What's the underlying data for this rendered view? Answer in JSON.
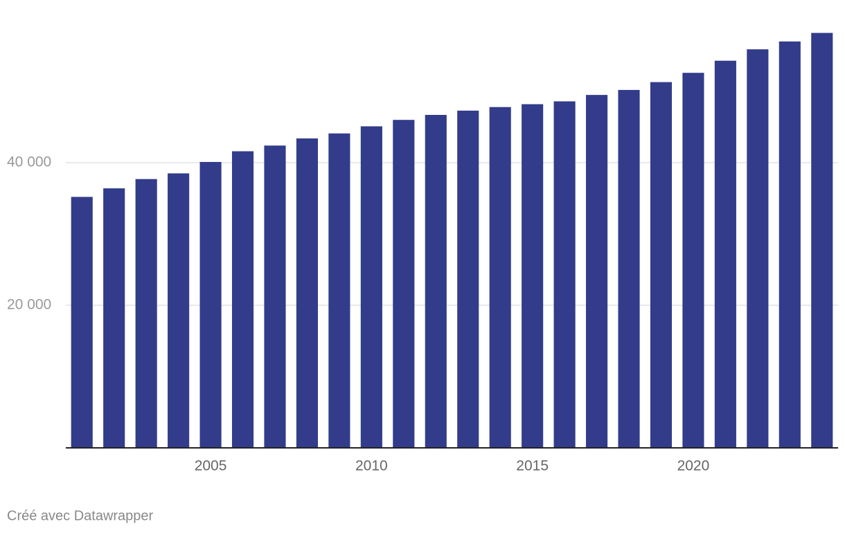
{
  "chart_data": {
    "type": "bar",
    "x": [
      2001,
      2002,
      2003,
      2004,
      2005,
      2006,
      2007,
      2008,
      2009,
      2010,
      2011,
      2012,
      2013,
      2014,
      2015,
      2016,
      2017,
      2018,
      2019,
      2020,
      2021,
      2022,
      2023,
      2024
    ],
    "values": [
      35200,
      36400,
      37700,
      38500,
      40100,
      41600,
      42400,
      43400,
      44100,
      45100,
      46000,
      46700,
      47300,
      47800,
      48200,
      48600,
      49500,
      50200,
      51300,
      52600,
      54300,
      55900,
      57000,
      58200
    ],
    "color": "#323c8a",
    "xlim": [
      2000.5,
      2024.5
    ],
    "xticks": [
      2005,
      2010,
      2015,
      2020
    ],
    "ylim": [
      0,
      60000
    ],
    "yticks": [
      {
        "value": 20000,
        "label": "20 000"
      },
      {
        "value": 40000,
        "label": "40 000"
      }
    ],
    "grid": true,
    "footer": "Créé avec Datawrapper"
  }
}
